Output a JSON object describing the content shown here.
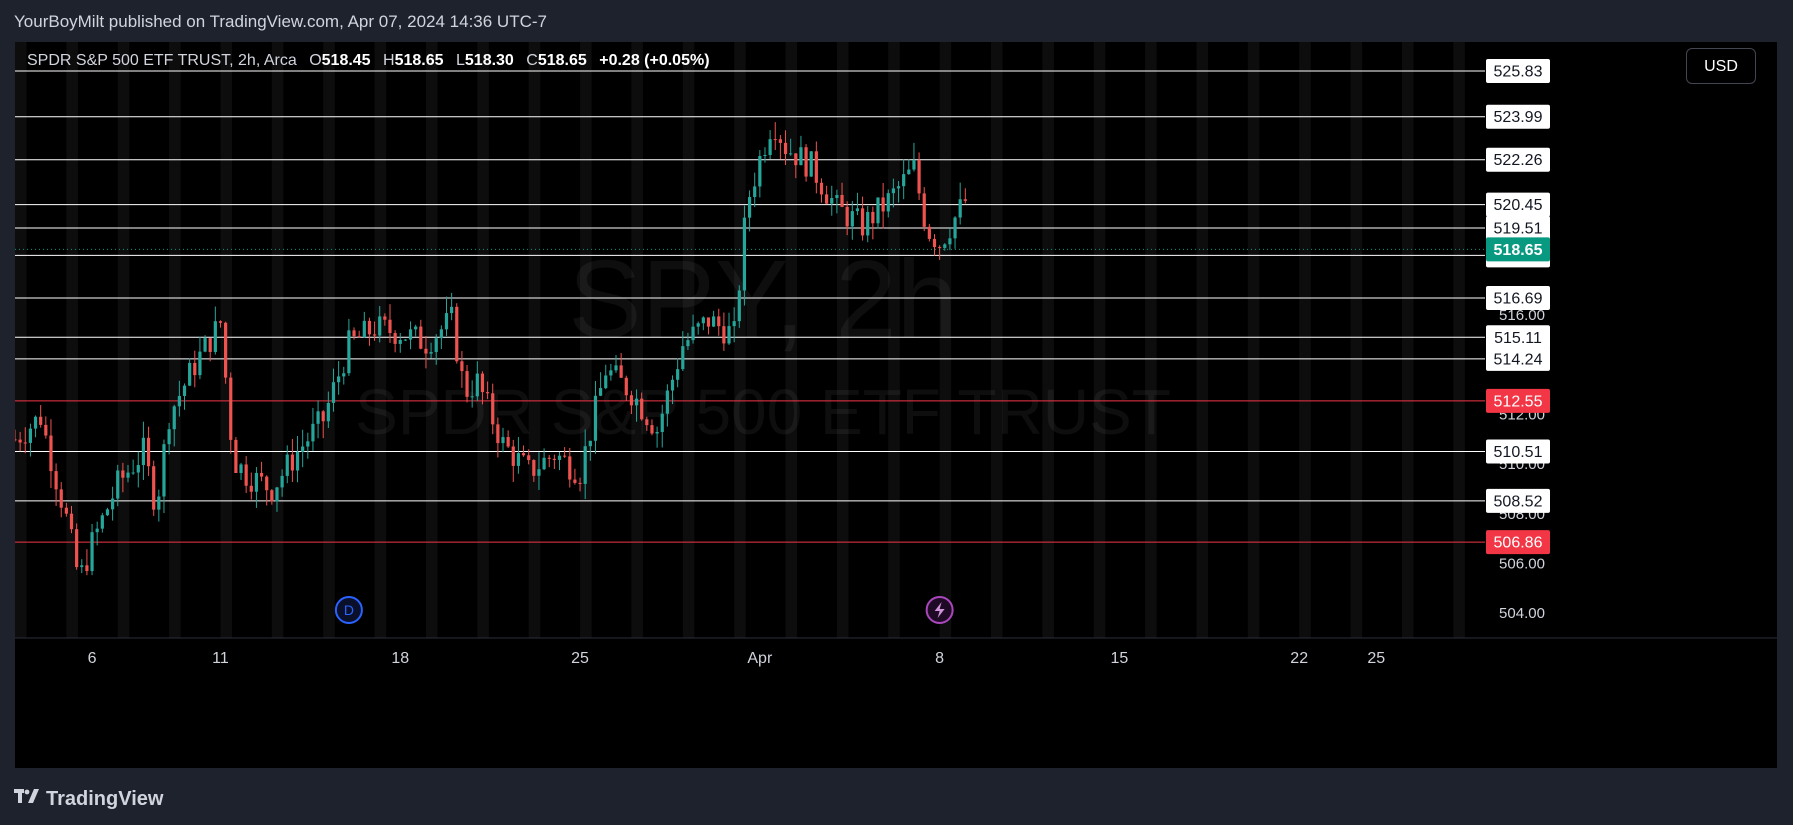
{
  "header": {
    "published_by": "YourBoyMilt published on TradingView.com, Apr 07, 2024 14:36 UTC-7"
  },
  "legend": {
    "title": "SPDR S&P 500 ETF TRUST, 2h, Arca",
    "open_label": "O",
    "open": "518.45",
    "high_label": "H",
    "high": "518.65",
    "low_label": "L",
    "low": "518.30",
    "close_label": "C",
    "close": "518.65",
    "change": "+0.28 (+0.05%)"
  },
  "currency_button": "USD",
  "watermark": {
    "line1": "SPY, 2h",
    "line2": "SPDR S&P 500 ETF TRUST"
  },
  "footer": {
    "brand": "TradingView"
  },
  "colors": {
    "up": "#26a69a",
    "down": "#ef5350",
    "bg": "#000000",
    "frame": "#1e222d",
    "white_level": "#ffffff",
    "red_level": "#f23645",
    "price_badge": "#089981"
  },
  "icons": [
    "d-marker-icon",
    "lightning-marker-icon",
    "tradingview-logo-icon"
  ],
  "chart_data": {
    "type": "candlestick",
    "symbol": "SPY",
    "interval": "2h",
    "ylim": [
      503.0,
      527.0
    ],
    "x_range": [
      "2024-03-03",
      "2024-04-29"
    ],
    "x_ticks": [
      {
        "label": "6",
        "date": "2024-03-06"
      },
      {
        "label": "11",
        "date": "2024-03-11"
      },
      {
        "label": "18",
        "date": "2024-03-18"
      },
      {
        "label": "25",
        "date": "2024-03-25"
      },
      {
        "label": "Apr",
        "date": "2024-04-01"
      },
      {
        "label": "8",
        "date": "2024-04-08"
      },
      {
        "label": "15",
        "date": "2024-04-15"
      },
      {
        "label": "22",
        "date": "2024-04-22"
      },
      {
        "label": "25",
        "date": "2024-04-25"
      }
    ],
    "y_ticks": [
      "504.00",
      "506.00",
      "508.00",
      "510.00",
      "512.00",
      "516.00"
    ],
    "levels": [
      {
        "value": 525.83,
        "color": "white"
      },
      {
        "value": 523.99,
        "color": "white"
      },
      {
        "value": 522.26,
        "color": "white"
      },
      {
        "value": 520.45,
        "color": "white"
      },
      {
        "value": 519.51,
        "color": "white"
      },
      {
        "value": 518.41,
        "color": "white"
      },
      {
        "value": 516.69,
        "color": "white"
      },
      {
        "value": 515.11,
        "color": "white"
      },
      {
        "value": 514.24,
        "color": "white"
      },
      {
        "value": 512.55,
        "color": "red"
      },
      {
        "value": 510.51,
        "color": "white"
      },
      {
        "value": 508.52,
        "color": "white"
      },
      {
        "value": 506.86,
        "color": "red"
      }
    ],
    "current_price": 518.65,
    "markers": [
      {
        "type": "D",
        "date": "2024-03-16"
      },
      {
        "type": "lightning",
        "date": "2024-04-08"
      }
    ],
    "price_path": [
      {
        "date": "2024-03-03",
        "price": 511.0
      },
      {
        "date": "2024-03-04",
        "price": 511.9
      },
      {
        "date": "2024-03-05",
        "price": 507.8
      },
      {
        "date": "2024-03-05T12:00",
        "price": 505.3
      },
      {
        "date": "2024-03-06",
        "price": 506.8
      },
      {
        "date": "2024-03-07",
        "price": 509.2
      },
      {
        "date": "2024-03-08",
        "price": 510.5
      },
      {
        "date": "2024-03-08T12:00",
        "price": 508.3
      },
      {
        "date": "2024-03-09",
        "price": 512.0
      },
      {
        "date": "2024-03-10",
        "price": 514.0
      },
      {
        "date": "2024-03-11",
        "price": 515.7
      },
      {
        "date": "2024-03-11T12:00",
        "price": 510.2
      },
      {
        "date": "2024-03-12",
        "price": 509.6
      },
      {
        "date": "2024-03-13",
        "price": 509.0
      },
      {
        "date": "2024-03-14",
        "price": 510.5
      },
      {
        "date": "2024-03-15",
        "price": 511.8
      },
      {
        "date": "2024-03-16",
        "price": 514.8
      },
      {
        "date": "2024-03-17",
        "price": 515.5
      },
      {
        "date": "2024-03-18",
        "price": 515.3
      },
      {
        "date": "2024-03-19",
        "price": 514.9
      },
      {
        "date": "2024-03-20",
        "price": 515.8
      },
      {
        "date": "2024-03-20T12:00",
        "price": 512.9
      },
      {
        "date": "2024-03-21",
        "price": 513.3
      },
      {
        "date": "2024-03-22",
        "price": 510.8
      },
      {
        "date": "2024-03-23",
        "price": 509.7
      },
      {
        "date": "2024-03-24",
        "price": 510.4
      },
      {
        "date": "2024-03-25",
        "price": 509.7
      },
      {
        "date": "2024-03-26",
        "price": 513.8
      },
      {
        "date": "2024-03-27",
        "price": 512.9
      },
      {
        "date": "2024-03-28",
        "price": 511.4
      },
      {
        "date": "2024-03-29",
        "price": 514.8
      },
      {
        "date": "2024-03-30",
        "price": 515.8
      },
      {
        "date": "2024-03-31",
        "price": 515.2
      },
      {
        "date": "2024-03-31T12:00",
        "price": 520.5
      },
      {
        "date": "2024-04-01",
        "price": 522.3
      },
      {
        "date": "2024-04-01T12:00",
        "price": 523.9
      },
      {
        "date": "2024-04-02",
        "price": 522.8
      },
      {
        "date": "2024-04-03",
        "price": 522.0
      },
      {
        "date": "2024-04-04",
        "price": 520.3
      },
      {
        "date": "2024-04-05",
        "price": 519.6
      },
      {
        "date": "2024-04-06",
        "price": 520.6
      },
      {
        "date": "2024-04-07",
        "price": 521.9
      },
      {
        "date": "2024-04-07T12:00",
        "price": 519.5
      },
      {
        "date": "2024-04-08",
        "price": 518.9
      },
      {
        "date": "2024-04-09",
        "price": 520.6
      }
    ]
  }
}
